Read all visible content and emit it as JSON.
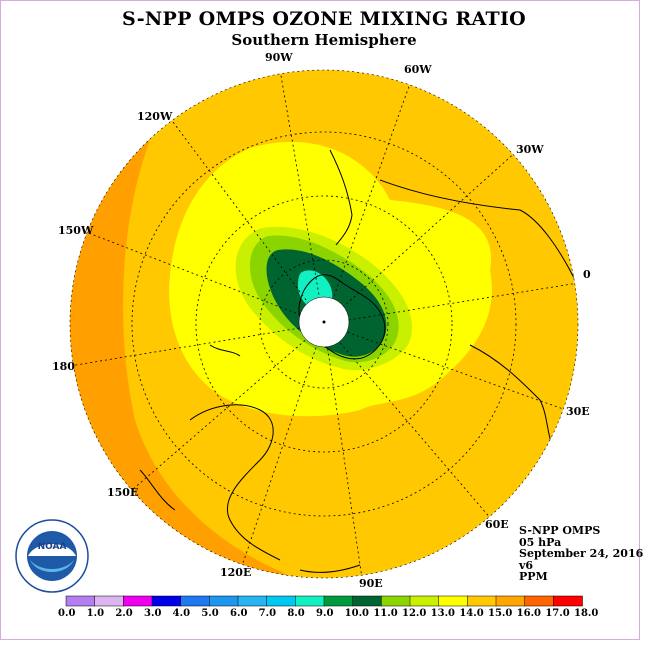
{
  "title": "S-NPP OMPS OZONE MIXING RATIO",
  "subtitle": "Southern Hemisphere",
  "longitude_labels": [
    "90W",
    "60W",
    "30W",
    "0",
    "30E",
    "60E",
    "90E",
    "120E",
    "150E",
    "180",
    "150W",
    "120W"
  ],
  "info": {
    "product": "S-NPP OMPS",
    "level": "05 hPa",
    "date": "September 24, 2016",
    "version": "v6",
    "units": "PPM"
  },
  "logo_text": "NOAA",
  "logo_ring_text": "NATIONAL OCEANIC AND ATMOSPHERIC ADMINISTRATION · U.S. DEPARTMENT OF COMMERCE",
  "colorbar": {
    "ticks": [
      "0.0",
      "1.0",
      "2.0",
      "3.0",
      "4.0",
      "5.0",
      "6.0",
      "7.0",
      "8.0",
      "9.0",
      "10.0",
      "11.0",
      "12.0",
      "13.0",
      "14.0",
      "15.0",
      "16.0",
      "17.0",
      "18.0"
    ],
    "colors": [
      "#b37ff0",
      "#dcb4f0",
      "#ee00ee",
      "#0000e6",
      "#1e78f0",
      "#1e96f0",
      "#28b4f0",
      "#00c8f0",
      "#10f0c0",
      "#009a3c",
      "#006430",
      "#8cd400",
      "#c8f000",
      "#ffff00",
      "#ffc800",
      "#ffa500",
      "#ff6400",
      "#ff0000",
      "#8c5a3c"
    ]
  },
  "colors": {
    "outer": "#ffa000",
    "level_14": "#ffc800",
    "level_13": "#ffff00",
    "level_12": "#c8f000",
    "level_11": "#8cd400",
    "level_10": "#006430",
    "level_8": "#10f0c0",
    "pole": "#ffffff",
    "coast": "#000000"
  }
}
